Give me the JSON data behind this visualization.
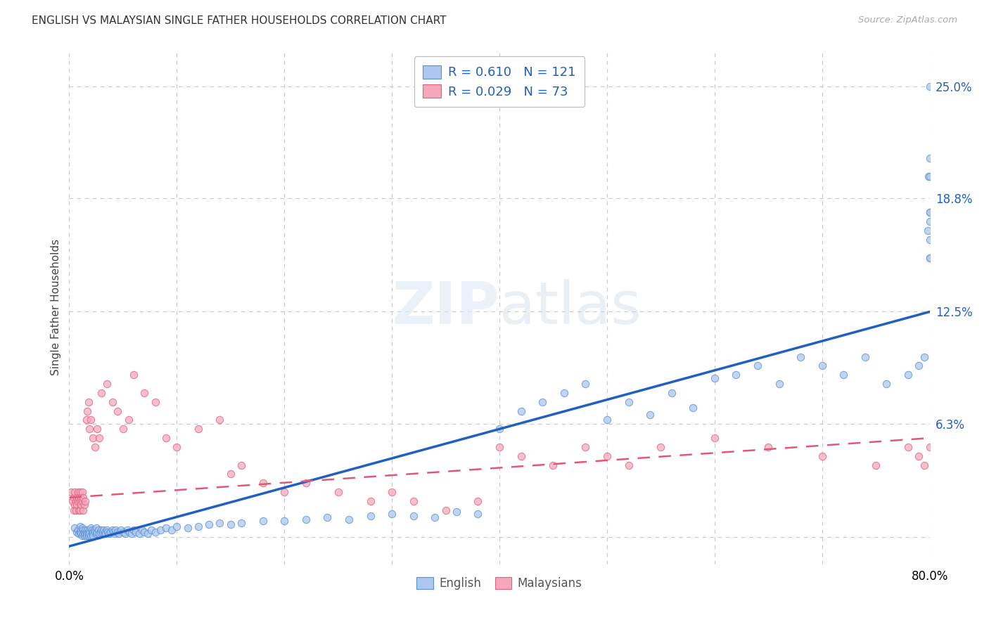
{
  "title": "ENGLISH VS MALAYSIAN SINGLE FATHER HOUSEHOLDS CORRELATION CHART",
  "source": "Source: ZipAtlas.com",
  "ylabel": "Single Father Households",
  "xlim": [
    0.0,
    0.8
  ],
  "ylim": [
    -0.015,
    0.27
  ],
  "ytick_positions": [
    0.0,
    0.063,
    0.125,
    0.188,
    0.25
  ],
  "ytick_labels": [
    "",
    "6.3%",
    "12.5%",
    "18.8%",
    "25.0%"
  ],
  "background_color": "#ffffff",
  "grid_color": "#c8c8c8",
  "watermark": "ZIPatlas",
  "legend_r1": "R = 0.610",
  "legend_n1": "N = 121",
  "legend_r2": "R = 0.029",
  "legend_n2": "N = 73",
  "english_color": "#adc8f0",
  "malaysian_color": "#f5a8bc",
  "english_edge_color": "#5a90d0",
  "malaysian_edge_color": "#e06080",
  "english_line_color": "#2060c0",
  "malaysian_line_color": "#e05878",
  "eng_line_x0": 0.0,
  "eng_line_y0": -0.005,
  "eng_line_x1": 0.8,
  "eng_line_y1": 0.125,
  "mal_line_x0": 0.0,
  "mal_line_y0": 0.022,
  "mal_line_x1": 0.8,
  "mal_line_y1": 0.055,
  "eng_x": [
    0.005,
    0.007,
    0.008,
    0.009,
    0.01,
    0.01,
    0.011,
    0.011,
    0.012,
    0.012,
    0.013,
    0.013,
    0.014,
    0.014,
    0.015,
    0.015,
    0.016,
    0.016,
    0.017,
    0.017,
    0.018,
    0.018,
    0.019,
    0.019,
    0.02,
    0.02,
    0.021,
    0.021,
    0.022,
    0.022,
    0.023,
    0.024,
    0.025,
    0.025,
    0.026,
    0.027,
    0.028,
    0.029,
    0.03,
    0.031,
    0.032,
    0.033,
    0.034,
    0.035,
    0.036,
    0.037,
    0.038,
    0.04,
    0.041,
    0.042,
    0.043,
    0.045,
    0.046,
    0.048,
    0.05,
    0.052,
    0.054,
    0.056,
    0.058,
    0.06,
    0.062,
    0.065,
    0.068,
    0.07,
    0.073,
    0.076,
    0.08,
    0.085,
    0.09,
    0.095,
    0.1,
    0.11,
    0.12,
    0.13,
    0.14,
    0.15,
    0.16,
    0.18,
    0.2,
    0.22,
    0.24,
    0.26,
    0.28,
    0.3,
    0.32,
    0.34,
    0.36,
    0.38,
    0.4,
    0.42,
    0.44,
    0.46,
    0.48,
    0.5,
    0.52,
    0.54,
    0.56,
    0.58,
    0.6,
    0.62,
    0.64,
    0.66,
    0.68,
    0.7,
    0.72,
    0.74,
    0.76,
    0.78,
    0.79,
    0.795,
    0.798,
    0.799,
    0.8,
    0.8,
    0.8,
    0.8,
    0.8,
    0.8,
    0.8,
    0.8,
    0.8
  ],
  "eng_y": [
    0.005,
    0.003,
    0.004,
    0.002,
    0.006,
    0.003,
    0.004,
    0.002,
    0.005,
    0.001,
    0.004,
    0.002,
    0.003,
    0.001,
    0.004,
    0.002,
    0.003,
    0.001,
    0.004,
    0.002,
    0.003,
    0.001,
    0.004,
    0.002,
    0.005,
    0.001,
    0.004,
    0.002,
    0.003,
    0.001,
    0.004,
    0.003,
    0.005,
    0.002,
    0.003,
    0.004,
    0.002,
    0.003,
    0.004,
    0.003,
    0.004,
    0.003,
    0.002,
    0.004,
    0.003,
    0.002,
    0.003,
    0.004,
    0.003,
    0.002,
    0.004,
    0.003,
    0.002,
    0.004,
    0.003,
    0.002,
    0.004,
    0.003,
    0.002,
    0.004,
    0.003,
    0.002,
    0.004,
    0.003,
    0.002,
    0.004,
    0.003,
    0.004,
    0.005,
    0.004,
    0.006,
    0.005,
    0.006,
    0.007,
    0.008,
    0.007,
    0.008,
    0.009,
    0.009,
    0.01,
    0.011,
    0.01,
    0.012,
    0.013,
    0.012,
    0.011,
    0.014,
    0.013,
    0.06,
    0.07,
    0.075,
    0.08,
    0.085,
    0.065,
    0.075,
    0.068,
    0.08,
    0.072,
    0.088,
    0.09,
    0.095,
    0.085,
    0.1,
    0.095,
    0.09,
    0.1,
    0.085,
    0.09,
    0.095,
    0.1,
    0.17,
    0.2,
    0.155,
    0.18,
    0.165,
    0.175,
    0.21,
    0.18,
    0.2,
    0.155,
    0.25
  ],
  "mal_x": [
    0.002,
    0.003,
    0.004,
    0.004,
    0.005,
    0.005,
    0.006,
    0.006,
    0.007,
    0.007,
    0.008,
    0.008,
    0.009,
    0.009,
    0.01,
    0.01,
    0.01,
    0.011,
    0.011,
    0.012,
    0.012,
    0.013,
    0.013,
    0.014,
    0.015,
    0.016,
    0.017,
    0.018,
    0.019,
    0.02,
    0.022,
    0.024,
    0.026,
    0.028,
    0.03,
    0.035,
    0.04,
    0.045,
    0.05,
    0.055,
    0.06,
    0.07,
    0.08,
    0.09,
    0.1,
    0.12,
    0.14,
    0.15,
    0.16,
    0.18,
    0.2,
    0.22,
    0.25,
    0.28,
    0.3,
    0.32,
    0.35,
    0.38,
    0.4,
    0.42,
    0.45,
    0.48,
    0.5,
    0.52,
    0.55,
    0.6,
    0.65,
    0.7,
    0.75,
    0.78,
    0.79,
    0.795,
    0.8
  ],
  "mal_y": [
    0.025,
    0.02,
    0.015,
    0.022,
    0.018,
    0.025,
    0.02,
    0.015,
    0.022,
    0.018,
    0.025,
    0.02,
    0.015,
    0.022,
    0.025,
    0.02,
    0.015,
    0.022,
    0.018,
    0.025,
    0.02,
    0.015,
    0.022,
    0.018,
    0.02,
    0.065,
    0.07,
    0.075,
    0.06,
    0.065,
    0.055,
    0.05,
    0.06,
    0.055,
    0.08,
    0.085,
    0.075,
    0.07,
    0.06,
    0.065,
    0.09,
    0.08,
    0.075,
    0.055,
    0.05,
    0.06,
    0.065,
    0.035,
    0.04,
    0.03,
    0.025,
    0.03,
    0.025,
    0.02,
    0.025,
    0.02,
    0.015,
    0.02,
    0.05,
    0.045,
    0.04,
    0.05,
    0.045,
    0.04,
    0.05,
    0.055,
    0.05,
    0.045,
    0.04,
    0.05,
    0.045,
    0.04,
    0.05
  ]
}
